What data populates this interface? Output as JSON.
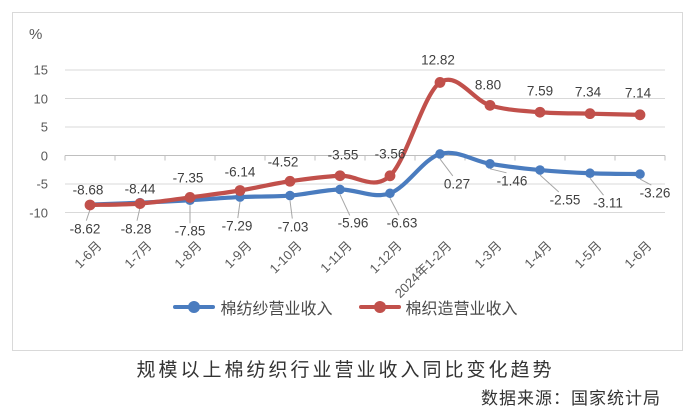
{
  "chart_data": {
    "type": "line",
    "title": "规模以上棉纺织行业营业收入同比变化趋势",
    "source_note": "数据来源：国家统计局",
    "unit_label": "%",
    "categories": [
      "1-6月",
      "1-7月",
      "1-8月",
      "1-9月",
      "1-10月",
      "1-11月",
      "1-12月",
      "2024年1-2月",
      "1-3月",
      "1-4月",
      "1-5月",
      "1-6月"
    ],
    "series": [
      {
        "name": "棉纺纱营业收入",
        "color": "#4A7CBF",
        "values": [
          -8.62,
          -8.28,
          -7.85,
          -7.29,
          -7.03,
          -5.96,
          -6.63,
          0.27,
          -1.46,
          -2.55,
          -3.11,
          -3.26
        ]
      },
      {
        "name": "棉织造营业收入",
        "color": "#C1504B",
        "values": [
          -8.68,
          -8.44,
          -7.35,
          -6.14,
          -4.52,
          -3.55,
          -3.56,
          12.82,
          8.8,
          7.59,
          7.34,
          7.14
        ]
      }
    ],
    "y_ticks": [
      15,
      10,
      5,
      0,
      -5,
      -10
    ],
    "ylim": [
      -10,
      17.5
    ],
    "grid": true,
    "legend_position": "bottom",
    "line_smoothing": true,
    "data_labels_shown": true
  }
}
